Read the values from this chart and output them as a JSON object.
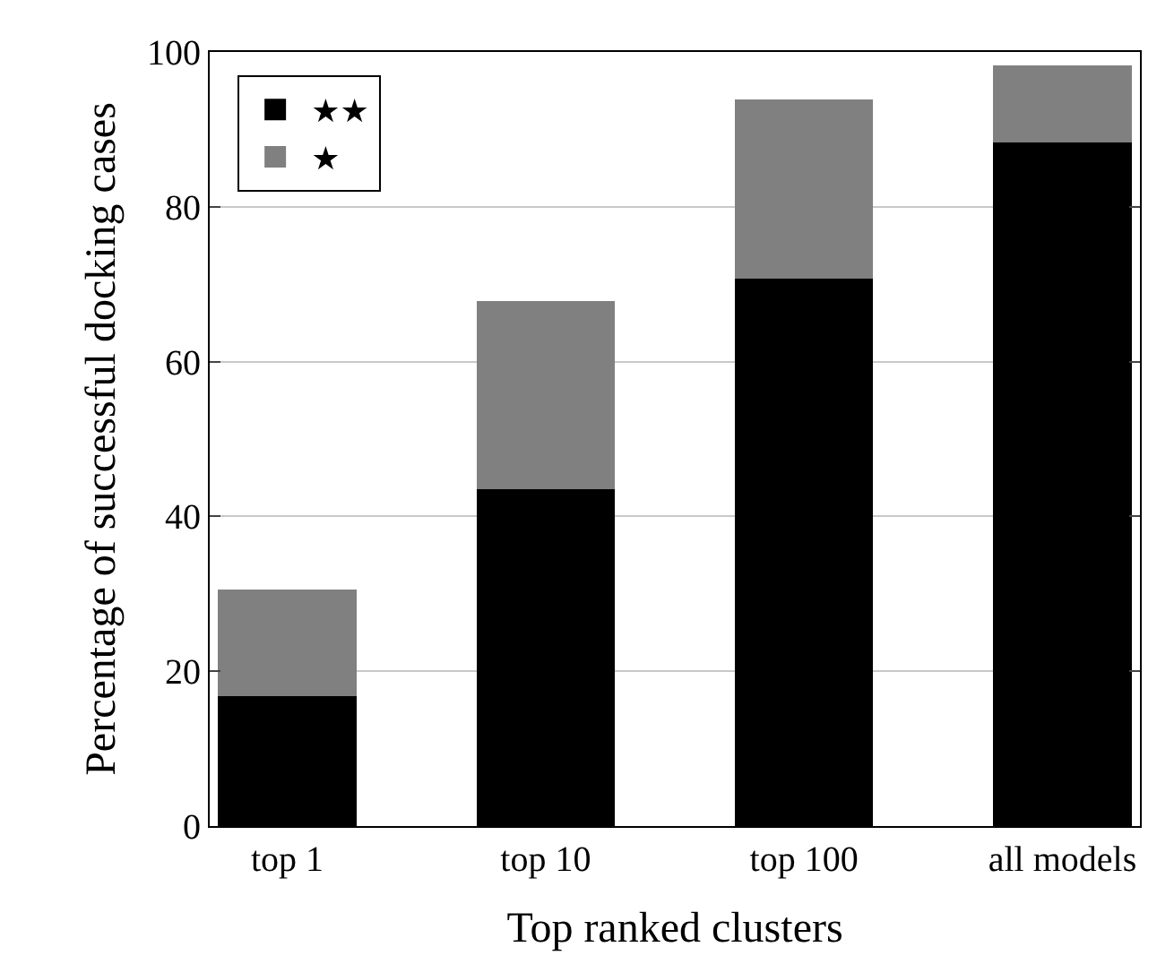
{
  "chart_data": {
    "type": "bar",
    "stacked": true,
    "xlabel": "Top ranked clusters",
    "ylabel": "Percentage of successful docking cases",
    "categories": [
      "top 1",
      "top 10",
      "top 100",
      "all models"
    ],
    "series": [
      {
        "name": "★★",
        "color": "#000000",
        "values": [
          16.8,
          43.5,
          70.7,
          88.3
        ]
      },
      {
        "name": "★",
        "color": "#808080",
        "values": [
          13.8,
          24.3,
          23.2,
          10.0
        ]
      }
    ],
    "ylim": [
      0,
      100
    ],
    "yticks": [
      0,
      20,
      40,
      60,
      80,
      100
    ],
    "grid": "y",
    "legend": "top left"
  }
}
